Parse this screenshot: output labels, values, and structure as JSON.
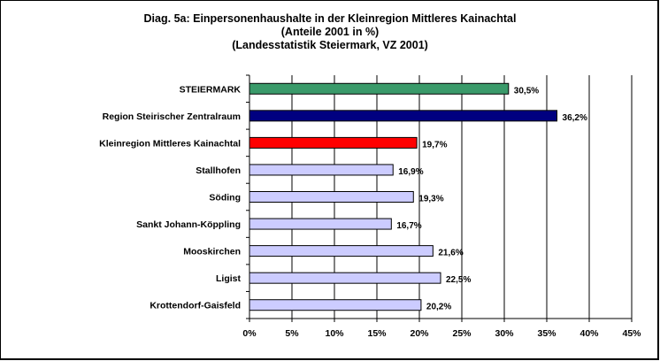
{
  "chart_data": {
    "type": "bar",
    "orientation": "horizontal",
    "title": "Diag. 5a: Einpersonenhaushalte  in der Kleinregion Mittleres  Kainachtal",
    "subtitle": [
      "(Anteile 2001 in %)",
      "(Landesstatistik  Steiermark,  VZ 2001)"
    ],
    "categories": [
      "STEIERMARK",
      "Region Steirischer Zentralraum",
      "Kleinregion Mittleres Kainachtal",
      "Stallhofen",
      "Söding",
      "Sankt Johann-Köppling",
      "Mooskirchen",
      "Ligist",
      "Krottendorf-Gaisfeld"
    ],
    "values": [
      30.5,
      36.2,
      19.7,
      16.9,
      19.3,
      16.7,
      21.6,
      22.5,
      20.2
    ],
    "value_labels": [
      "30,5%",
      "36,2%",
      "19,7%",
      "16,9%",
      "19,3%",
      "16,7%",
      "21,6%",
      "22,5%",
      "20,2%"
    ],
    "bar_colors": [
      "#3a9a6a",
      "#000080",
      "#ff0000",
      "#ccccff",
      "#ccccff",
      "#ccccff",
      "#ccccff",
      "#ccccff",
      "#ccccff"
    ],
    "xlim": [
      0,
      45
    ],
    "xticks": [
      0,
      5,
      10,
      15,
      20,
      25,
      30,
      35,
      40,
      45
    ],
    "xtick_labels": [
      "0%",
      "5%",
      "10%",
      "15%",
      "20%",
      "25%",
      "30%",
      "35%",
      "40%",
      "45%"
    ],
    "grid": "vertical",
    "legend": "none"
  }
}
